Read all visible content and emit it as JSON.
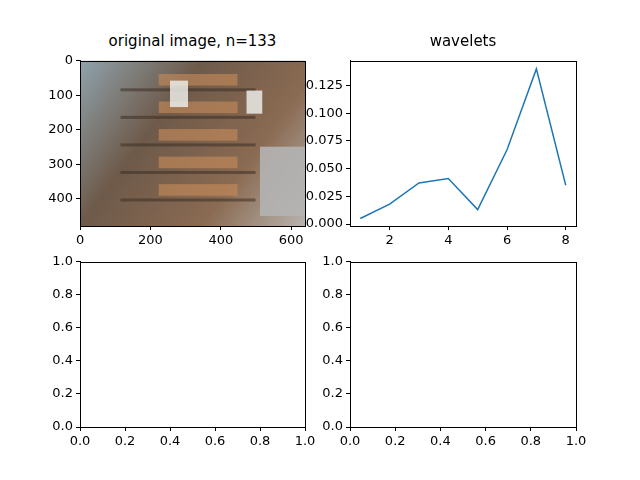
{
  "chart_data": [
    {
      "type": "image",
      "title": "original image, n=133",
      "xlim": [
        -0.5,
        639.5
      ],
      "ylim": [
        479.5,
        -0.5
      ],
      "xticks": [
        0,
        200,
        400,
        600
      ],
      "yticks": [
        0,
        100,
        200,
        300,
        400
      ],
      "grid": false
    },
    {
      "type": "line",
      "title": "wavelets",
      "color": "#1f77b4",
      "x": [
        1,
        2,
        3,
        4,
        5,
        6,
        7,
        8
      ],
      "values": [
        0.005,
        0.018,
        0.037,
        0.041,
        0.013,
        0.067,
        0.14,
        0.035
      ],
      "xlim": [
        0.65,
        8.35
      ],
      "ylim": [
        -0.0018,
        0.1473
      ],
      "xticks": [
        2,
        4,
        6,
        8
      ],
      "yticks": [
        {
          "value": 0,
          "label": "0.000"
        },
        0.025,
        {
          "value": 0.05,
          "label": "0.050"
        },
        0.075,
        {
          "value": 0.1,
          "label": "0.100"
        },
        0.125
      ],
      "grid": false
    },
    {
      "type": "empty",
      "xlim": [
        0,
        1
      ],
      "ylim": [
        0,
        1
      ],
      "xticks": [
        {
          "value": 0,
          "label": "0.0"
        },
        0.2,
        0.4,
        0.6,
        0.8,
        {
          "value": 1,
          "label": "1.0"
        }
      ],
      "yticks": [
        {
          "value": 0,
          "label": "0.0"
        },
        0.2,
        0.4,
        0.6,
        0.8,
        {
          "value": 1,
          "label": "1.0"
        }
      ],
      "grid": false
    },
    {
      "type": "empty",
      "xlim": [
        0,
        1
      ],
      "ylim": [
        0,
        1
      ],
      "xticks": [
        {
          "value": 0,
          "label": "0.0"
        },
        0.2,
        0.4,
        0.6,
        0.8,
        {
          "value": 1,
          "label": "1.0"
        }
      ],
      "yticks": [
        {
          "value": 0,
          "label": "0.0"
        },
        0.2,
        0.4,
        0.6,
        0.8,
        {
          "value": 1,
          "label": "1.0"
        }
      ],
      "grid": false
    }
  ]
}
